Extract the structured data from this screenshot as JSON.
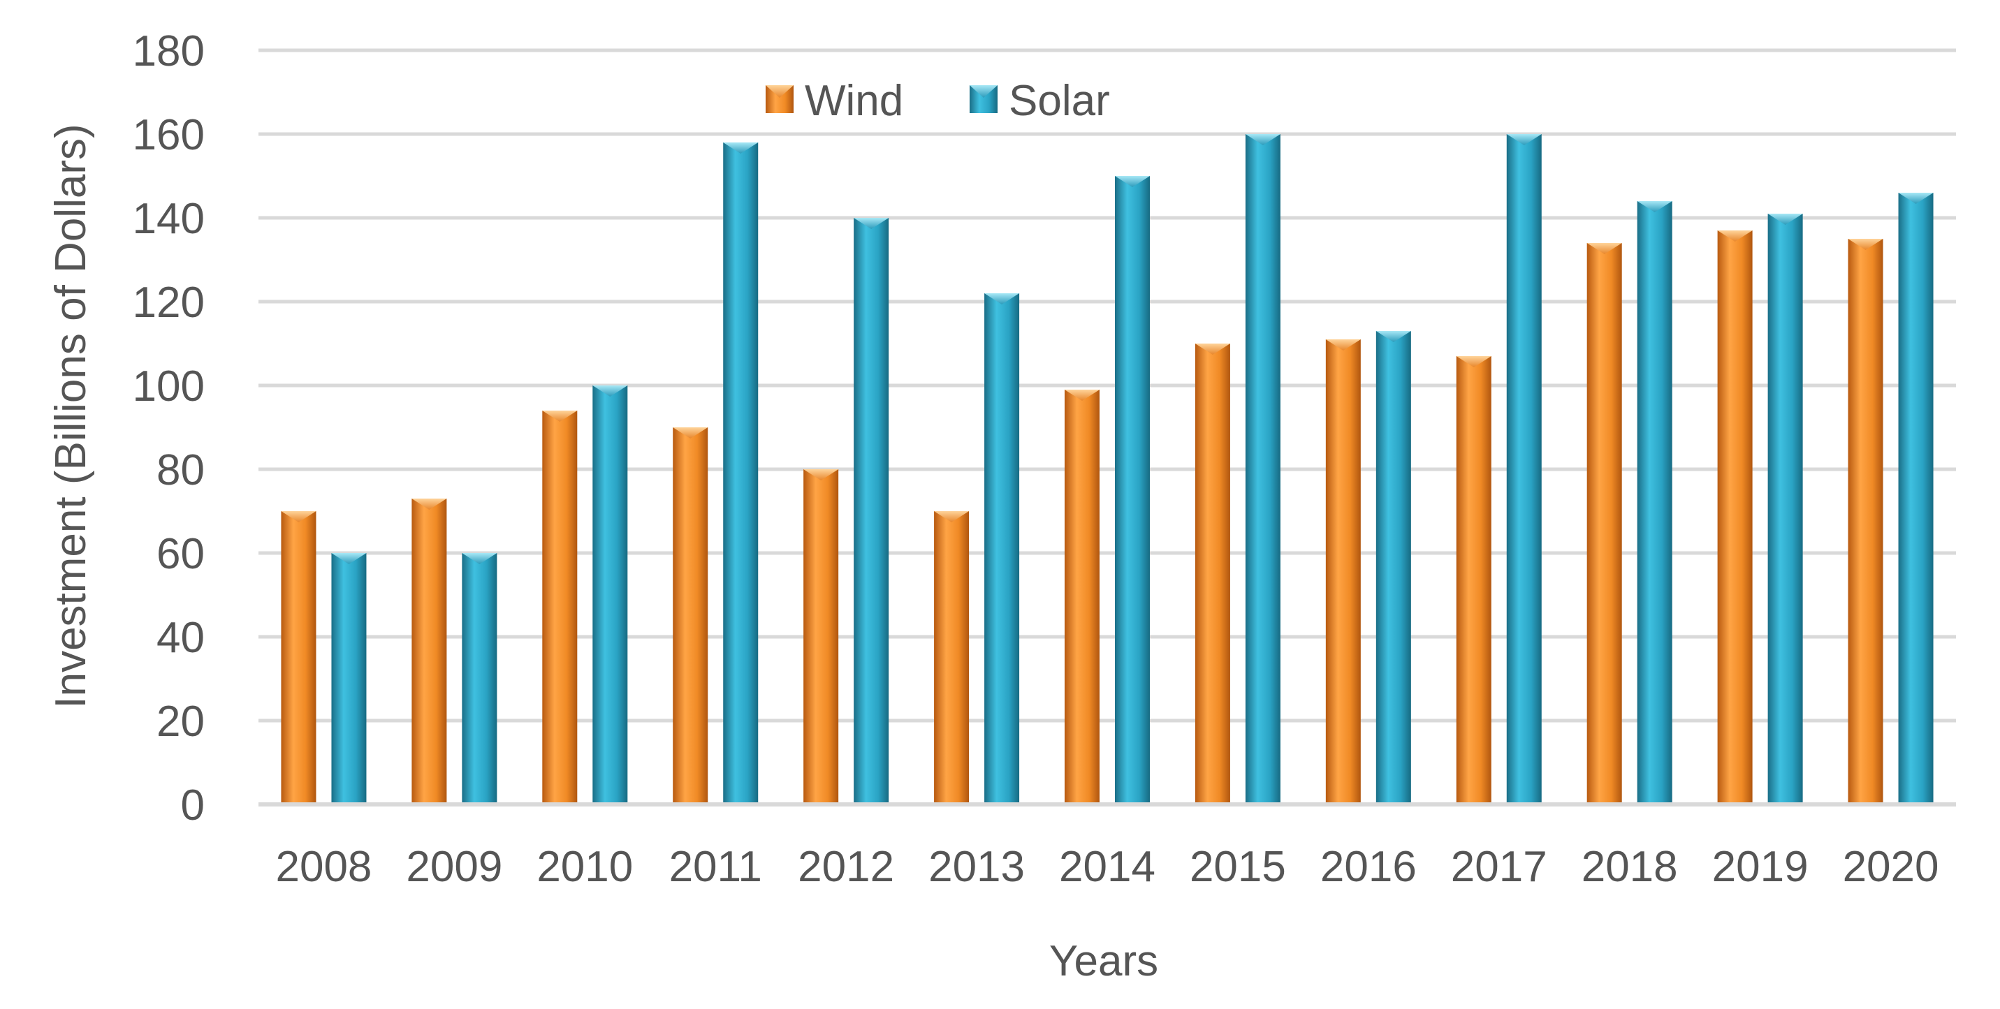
{
  "chart_data": {
    "type": "bar",
    "title": "",
    "xlabel": "Years",
    "ylabel": "Investment (Billions of Dollars)",
    "ylim": [
      0,
      180
    ],
    "yticks": [
      0,
      20,
      40,
      60,
      80,
      100,
      120,
      140,
      160,
      180
    ],
    "grid": true,
    "legend_position": "top-center",
    "categories": [
      "2008",
      "2009",
      "2010",
      "2011",
      "2012",
      "2013",
      "2014",
      "2015",
      "2016",
      "2017",
      "2018",
      "2019",
      "2020"
    ],
    "series": [
      {
        "name": "Wind",
        "color": "#E8862A",
        "values": [
          70,
          73,
          94,
          90,
          80,
          70,
          99,
          110,
          111,
          107,
          134,
          137,
          135
        ]
      },
      {
        "name": "Solar",
        "color": "#2A9BBB",
        "values": [
          60,
          60,
          100,
          158,
          140,
          122,
          150,
          160,
          113,
          160,
          144,
          141,
          146
        ]
      }
    ]
  }
}
